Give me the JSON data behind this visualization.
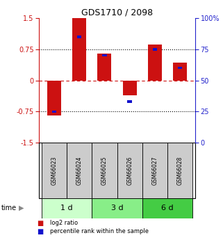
{
  "title": "GDS1710 / 2098",
  "samples": [
    "GSM66023",
    "GSM66024",
    "GSM66025",
    "GSM66026",
    "GSM66027",
    "GSM66028"
  ],
  "log2_ratios": [
    -0.85,
    1.5,
    0.65,
    -0.35,
    0.87,
    0.42
  ],
  "percentile_ranks": [
    25,
    85,
    70,
    33,
    75,
    60
  ],
  "groups": [
    {
      "label": "1 d",
      "start": 0,
      "end": 2,
      "color": "#ccffcc"
    },
    {
      "label": "3 d",
      "start": 2,
      "end": 4,
      "color": "#88ee88"
    },
    {
      "label": "6 d",
      "start": 4,
      "end": 6,
      "color": "#44cc44"
    }
  ],
  "bar_color_log2": "#cc1111",
  "bar_color_pct": "#1111cc",
  "ylim_left": [
    -1.5,
    1.5
  ],
  "ylim_right": [
    0,
    100
  ],
  "yticks_left": [
    -1.5,
    -0.75,
    0,
    0.75,
    1.5
  ],
  "ytick_labels_left": [
    "-1.5",
    "-0.75",
    "0",
    "0.75",
    "1.5"
  ],
  "yticks_right": [
    0,
    25,
    50,
    75,
    100
  ],
  "ytick_labels_right": [
    "0",
    "25",
    "50",
    "75",
    "100%"
  ],
  "hlines": [
    -0.75,
    0,
    0.75
  ],
  "left_color": "#cc1111",
  "right_color": "#2222cc",
  "bar_width": 0.55,
  "pct_bar_width": 0.18,
  "pct_bar_height": 0.06
}
